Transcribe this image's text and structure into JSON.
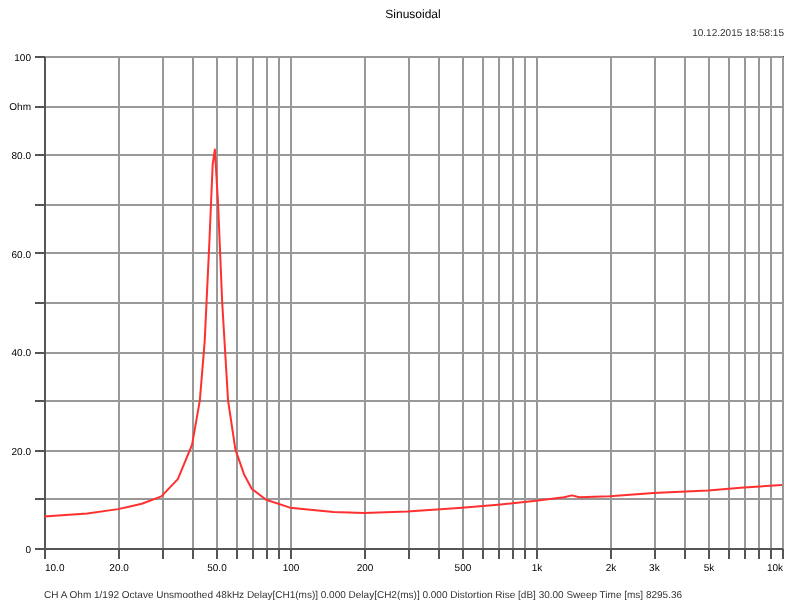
{
  "chart_data": {
    "type": "line",
    "title": "Sinusoidal",
    "annotations": [
      "10.12.2015 18:58:15",
      "CH A   Ohm   1/192 Octave   Unsmoothed   48kHz   Delay[CH1(ms)] 0.000   Delay[CH2(ms)] 0.000   Distortion Rise [dB] 30.00   Sweep Time [ms] 8295.36"
    ],
    "x": [
      10,
      15,
      20,
      25,
      30,
      35,
      40,
      43,
      45,
      47,
      48.5,
      49.5,
      51,
      53,
      56,
      60,
      65,
      70,
      80,
      100,
      150,
      200,
      300,
      500,
      700,
      1000,
      1300,
      1400,
      1500,
      2000,
      3000,
      5000,
      7000,
      10000
    ],
    "series": [
      {
        "color": "#ff3030",
        "values": [
          6.4,
          7.0,
          7.9,
          9.0,
          10.5,
          14,
          21,
          30,
          42,
          62,
          78,
          81,
          70,
          50,
          30,
          20,
          15,
          12,
          9.8,
          8.2,
          7.3,
          7.1,
          7.4,
          8.2,
          8.8,
          9.6,
          10.3,
          10.7,
          10.3,
          10.5,
          11.2,
          11.7,
          12.3,
          12.8
        ]
      }
    ],
    "log": "x",
    "xlim": [
      10,
      10000
    ],
    "xticks": [
      {
        "value": 10,
        "label": "10.0"
      },
      {
        "value": 20,
        "label": "20.0"
      },
      {
        "value": 30,
        "label": null
      },
      {
        "value": 40,
        "label": null
      },
      {
        "value": 50,
        "label": "50.0"
      },
      {
        "value": 60,
        "label": null
      },
      {
        "value": 70,
        "label": null
      },
      {
        "value": 80,
        "label": null
      },
      {
        "value": 90,
        "label": null
      },
      {
        "value": 100,
        "label": "100"
      },
      {
        "value": 200,
        "label": "200"
      },
      {
        "value": 300,
        "label": null
      },
      {
        "value": 400,
        "label": null
      },
      {
        "value": 500,
        "label": "500"
      },
      {
        "value": 600,
        "label": null
      },
      {
        "value": 700,
        "label": null
      },
      {
        "value": 800,
        "label": null
      },
      {
        "value": 900,
        "label": null
      },
      {
        "value": 1000,
        "label": "1k"
      },
      {
        "value": 2000,
        "label": "2k"
      },
      {
        "value": 3000,
        "label": "3k"
      },
      {
        "value": 4000,
        "label": null
      },
      {
        "value": 5000,
        "label": "5k"
      },
      {
        "value": 6000,
        "label": null
      },
      {
        "value": 7000,
        "label": null
      },
      {
        "value": 8000,
        "label": null
      },
      {
        "value": 9000,
        "label": null
      },
      {
        "value": 10000,
        "label": "10k"
      }
    ],
    "ylim": [
      0,
      100
    ],
    "yticks": [
      0,
      {
        "value": 10,
        "label": null
      },
      {
        "value": 20,
        "label": "20.0"
      },
      {
        "value": 30,
        "label": null
      },
      {
        "value": 40,
        "label": "40.0"
      },
      {
        "value": 50,
        "label": null
      },
      {
        "value": 60,
        "label": "60.0"
      },
      {
        "value": 70,
        "label": null
      },
      {
        "value": 80,
        "label": "80.0"
      },
      {
        "value": 90,
        "label": "Ohm"
      },
      {
        "value": 100,
        "label": "100"
      }
    ],
    "grid": true,
    "marker": "none",
    "line_style": "solid"
  }
}
